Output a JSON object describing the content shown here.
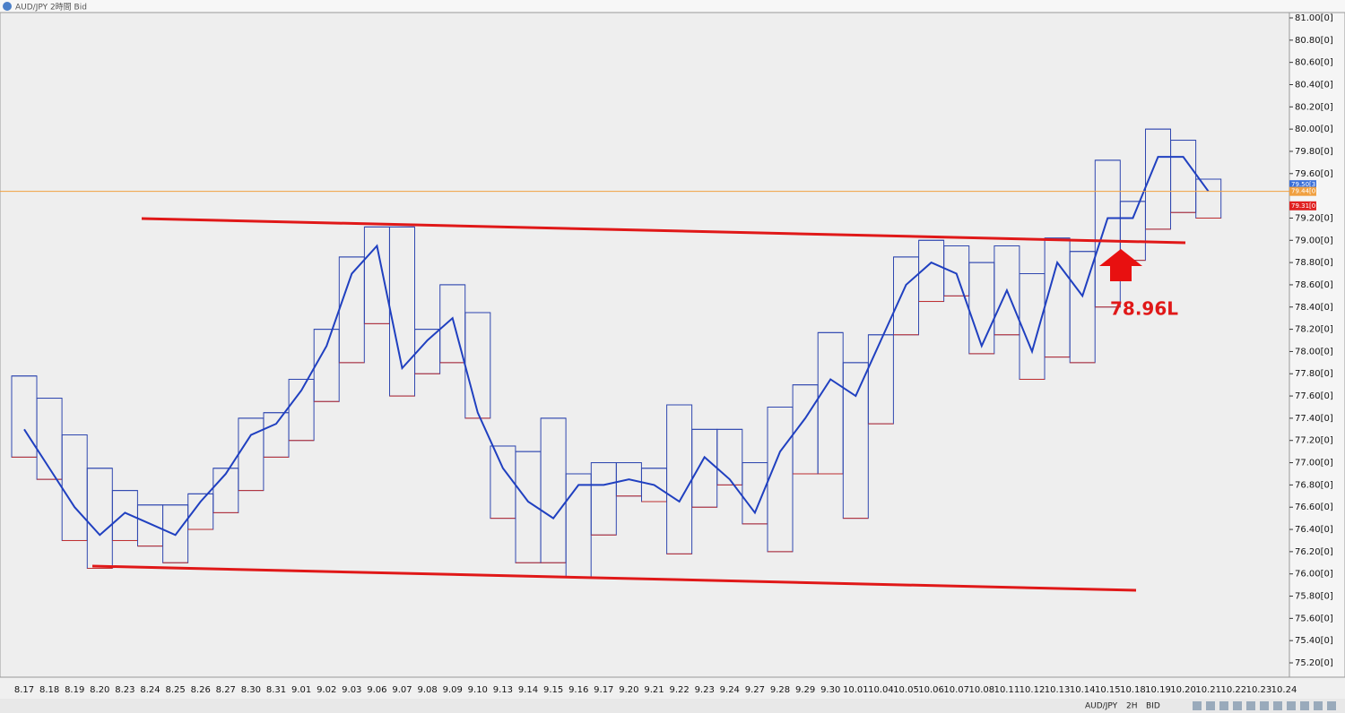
{
  "window_title": "AUD/JPY 2時間 Bid",
  "chart_data": {
    "type": "range-box",
    "categories": [
      "8.17",
      "8.18",
      "8.19",
      "8.20",
      "8.23",
      "8.24",
      "8.25",
      "8.26",
      "8.27",
      "8.30",
      "8.31",
      "9.01",
      "9.02",
      "9.03",
      "9.06",
      "9.07",
      "9.08",
      "9.09",
      "9.10",
      "9.13",
      "9.14",
      "9.15",
      "9.16",
      "9.17",
      "9.20",
      "9.21",
      "9.22",
      "9.23",
      "9.24",
      "9.27",
      "9.28",
      "9.29",
      "9.30",
      "10.01",
      "10.04",
      "10.05",
      "10.06",
      "10.07",
      "10.08",
      "10.11",
      "10.12",
      "10.13",
      "10.14",
      "10.15",
      "10.18",
      "10.19",
      "10.20",
      "10.21",
      "10.22",
      "10.23",
      "10.24"
    ],
    "high": [
      77.78,
      77.58,
      77.25,
      76.95,
      76.75,
      76.62,
      76.62,
      76.72,
      76.95,
      77.4,
      77.45,
      77.75,
      78.2,
      78.85,
      79.12,
      79.12,
      78.2,
      78.6,
      78.35,
      77.15,
      77.1,
      77.4,
      76.9,
      77.0,
      77.0,
      76.95,
      77.52,
      77.3,
      77.3,
      77.0,
      77.5,
      77.7,
      78.17,
      77.9,
      78.15,
      78.85,
      79.0,
      78.95,
      78.8,
      78.95,
      78.7,
      79.02,
      78.9,
      79.72,
      79.35,
      80.0,
      79.9,
      79.55,
      null,
      null,
      null
    ],
    "low": [
      77.05,
      76.85,
      76.3,
      76.05,
      76.3,
      76.25,
      76.1,
      76.4,
      76.55,
      76.75,
      77.05,
      77.2,
      77.55,
      77.9,
      78.25,
      77.6,
      77.8,
      77.9,
      77.4,
      76.5,
      76.1,
      76.1,
      75.97,
      76.35,
      76.7,
      76.65,
      76.18,
      76.6,
      76.8,
      76.45,
      76.2,
      76.9,
      76.9,
      76.5,
      77.35,
      78.15,
      78.45,
      78.5,
      77.98,
      78.15,
      77.75,
      77.95,
      77.9,
      78.4,
      78.82,
      79.1,
      79.25,
      79.2,
      null,
      null,
      null
    ],
    "close": [
      77.3,
      76.95,
      76.6,
      76.35,
      76.55,
      76.45,
      76.35,
      76.65,
      76.9,
      77.25,
      77.35,
      77.65,
      78.05,
      78.7,
      78.95,
      77.85,
      78.1,
      78.3,
      77.45,
      76.95,
      76.65,
      76.5,
      76.8,
      76.8,
      76.85,
      76.8,
      76.65,
      77.05,
      76.85,
      76.55,
      77.1,
      77.4,
      77.75,
      77.6,
      78.1,
      78.6,
      78.8,
      78.7,
      78.05,
      78.55,
      78.0,
      78.8,
      78.5,
      79.2,
      79.2,
      79.75,
      79.75,
      79.44,
      null,
      null,
      null
    ],
    "ylim": [
      75.0,
      81.1
    ],
    "yticks": [
      {
        "value": 81.0,
        "label": "81.00[0]"
      },
      {
        "value": 80.8,
        "label": "80.80[0]"
      },
      {
        "value": 80.6,
        "label": "80.60[0]"
      },
      {
        "value": 80.4,
        "label": "80.40[0]"
      },
      {
        "value": 80.2,
        "label": "80.20[0]"
      },
      {
        "value": 80.0,
        "label": "80.00[0]"
      },
      {
        "value": 79.8,
        "label": "79.80[0]"
      },
      {
        "value": 79.6,
        "label": "79.60[0]"
      },
      {
        "value": 79.2,
        "label": "79.20[0]"
      },
      {
        "value": 79.0,
        "label": "79.00[0]"
      },
      {
        "value": 78.8,
        "label": "78.80[0]"
      },
      {
        "value": 78.6,
        "label": "78.60[0]"
      },
      {
        "value": 78.4,
        "label": "78.40[0]"
      },
      {
        "value": 78.2,
        "label": "78.20[0]"
      },
      {
        "value": 78.0,
        "label": "78.00[0]"
      },
      {
        "value": 77.8,
        "label": "77.80[0]"
      },
      {
        "value": 77.6,
        "label": "77.60[0]"
      },
      {
        "value": 77.4,
        "label": "77.40[0]"
      },
      {
        "value": 77.2,
        "label": "77.20[0]"
      },
      {
        "value": 77.0,
        "label": "77.00[0]"
      },
      {
        "value": 76.8,
        "label": "76.80[0]"
      },
      {
        "value": 76.6,
        "label": "76.60[0]"
      },
      {
        "value": 76.4,
        "label": "76.40[0]"
      },
      {
        "value": 76.2,
        "label": "76.20[0]"
      },
      {
        "value": 76.0,
        "label": "76.00[0]"
      },
      {
        "value": 75.8,
        "label": "75.80[0]"
      },
      {
        "value": 75.6,
        "label": "75.60[0]"
      },
      {
        "value": 75.4,
        "label": "75.40[0]"
      },
      {
        "value": 75.2,
        "label": "75.20[0]"
      }
    ],
    "price_tags": [
      {
        "value": 79.5,
        "label": "79.50[3]",
        "color": "#3a6fd8"
      },
      {
        "value": 79.44,
        "label": "79.44[0]",
        "color": "#f0a040"
      },
      {
        "value": 79.31,
        "label": "79.31[0]",
        "color": "#e02020"
      }
    ],
    "annotation": "78.96L"
  },
  "toolbar": {
    "symbol": "AUD/JPY",
    "timeframe": "2H",
    "side": "BID"
  }
}
